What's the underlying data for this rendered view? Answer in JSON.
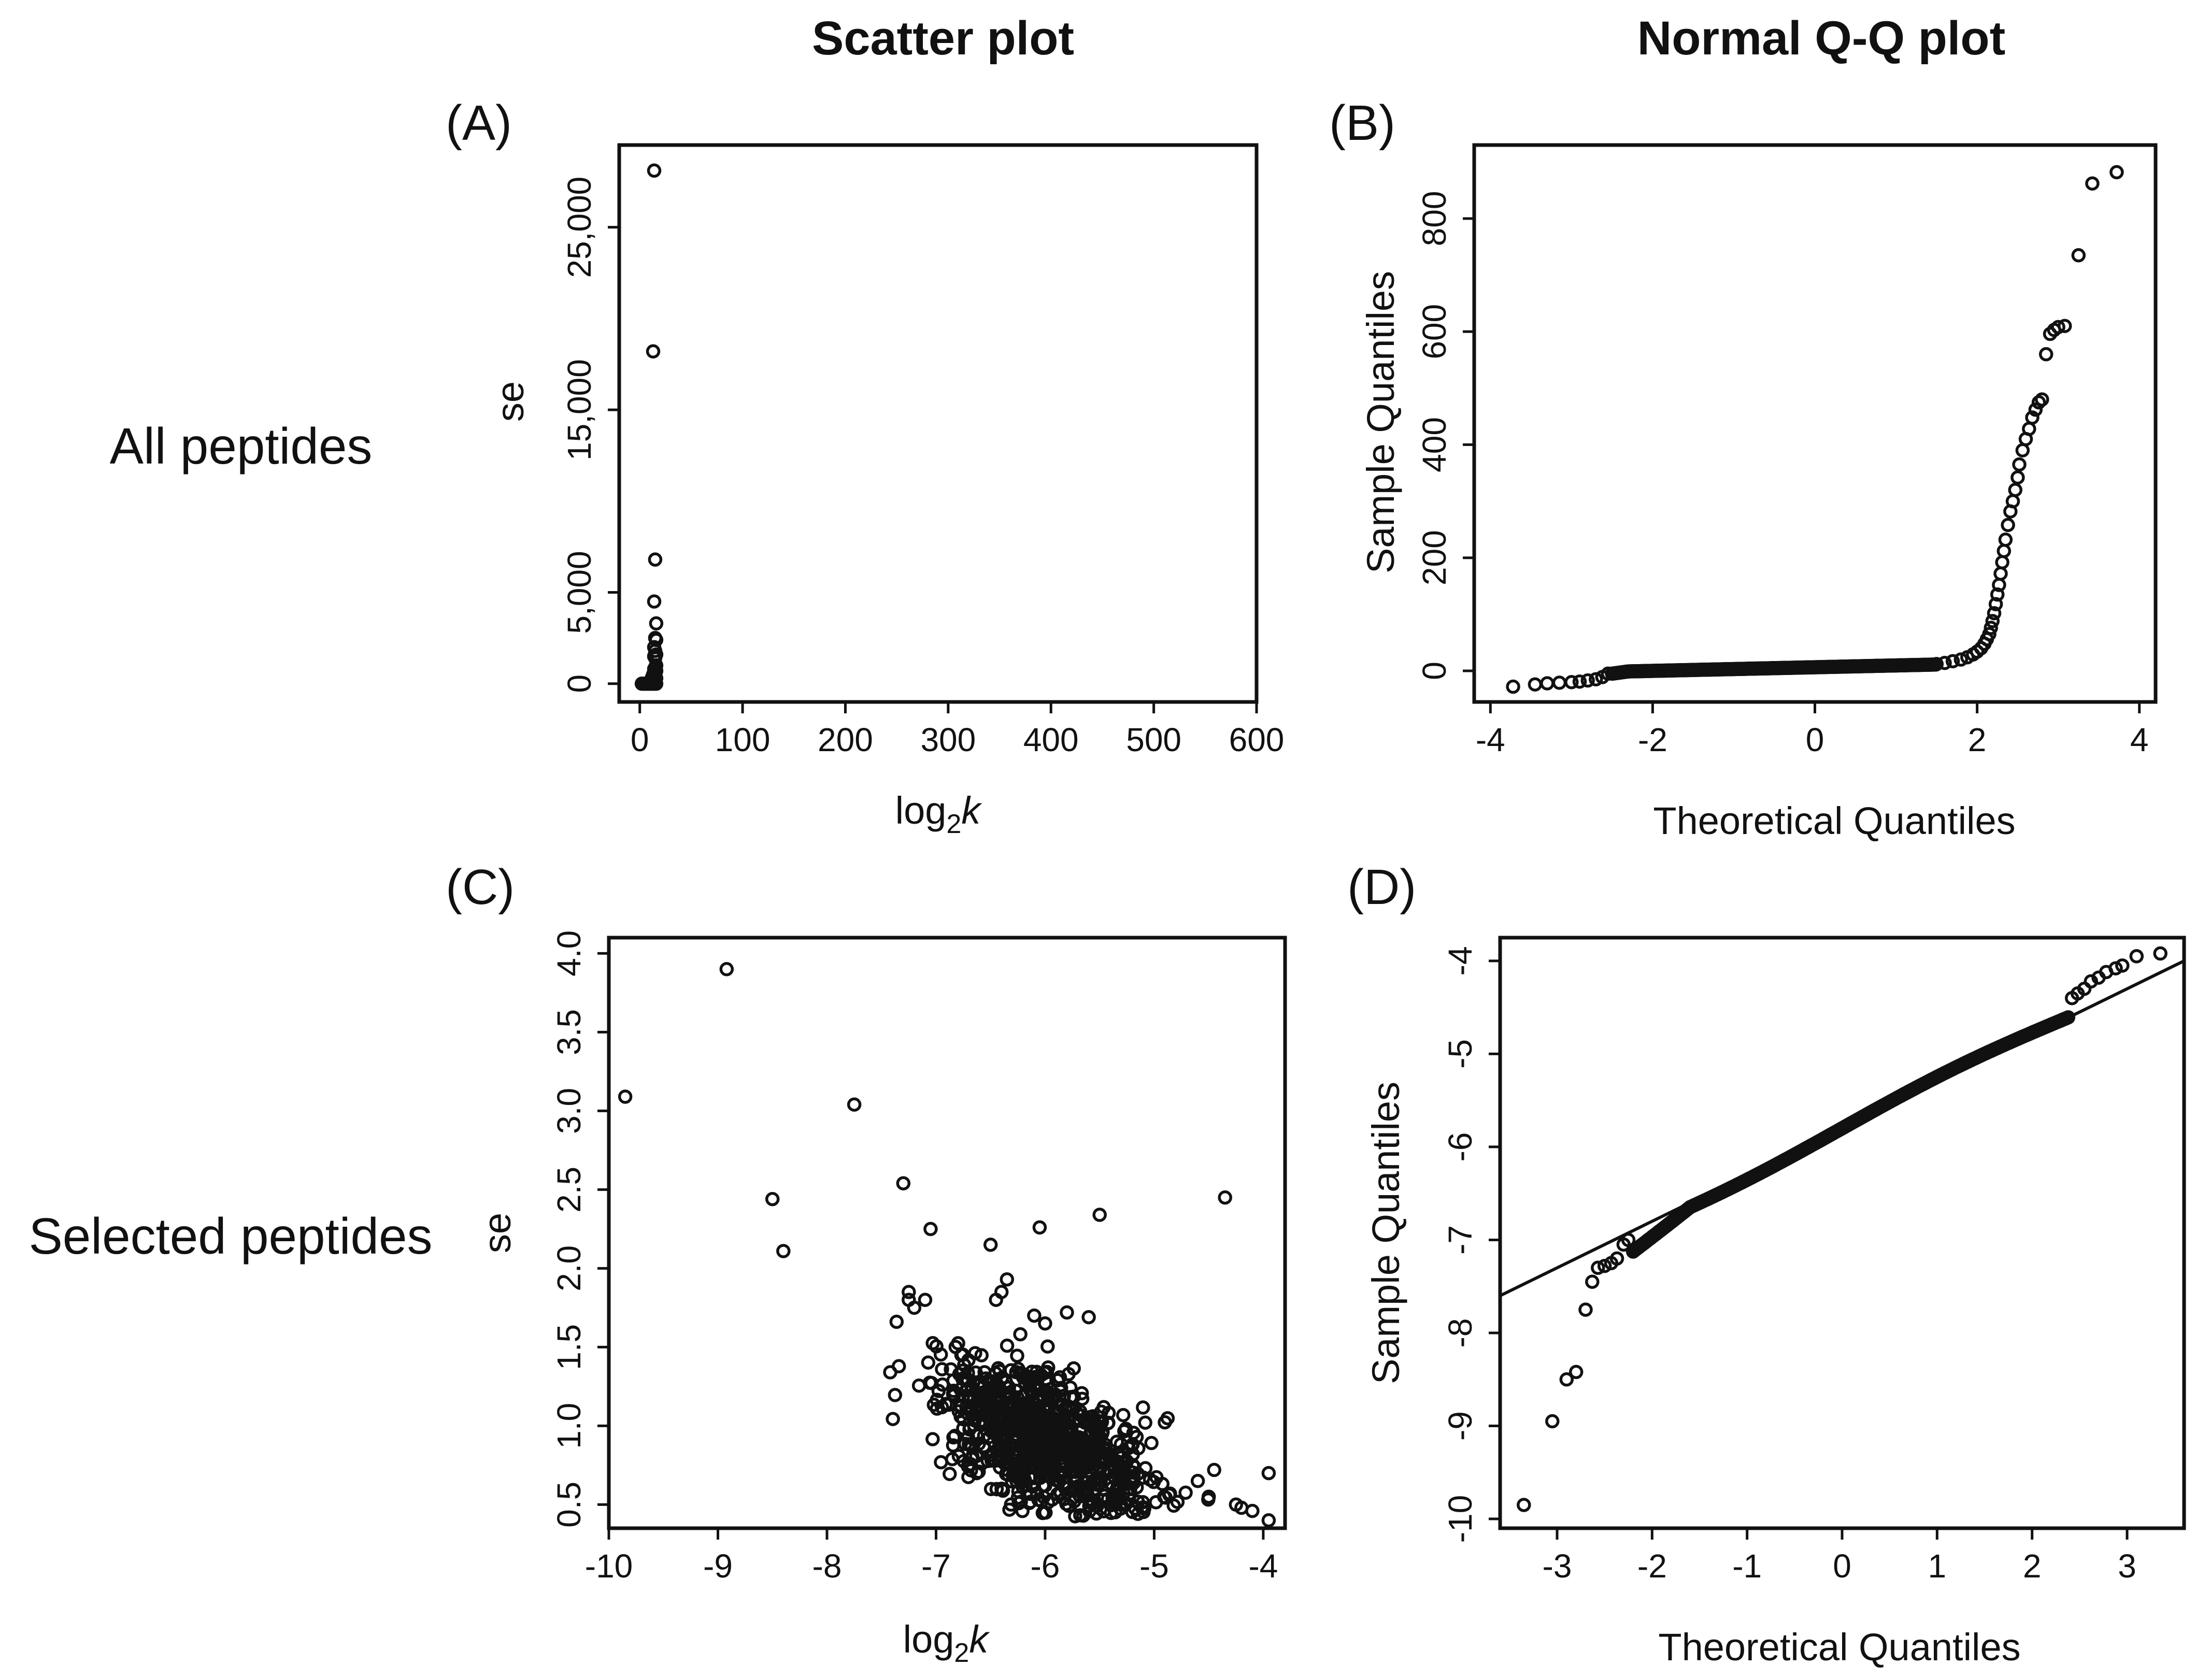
{
  "figure": {
    "col_titles": [
      "Scatter plot",
      "Normal Q-Q plot"
    ],
    "row_labels": [
      "All peptides",
      "Selected peptides"
    ]
  },
  "chart_data": [
    {
      "id": "A",
      "panel_label": "(A)",
      "type": "scatter",
      "title": "",
      "xlabel_base": "log",
      "xlabel_sub": "2",
      "xlabel_var": "k",
      "ylabel": "se",
      "xlim": [
        -20,
        600
      ],
      "ylim": [
        -1000,
        29500
      ],
      "xticks": [
        0,
        100,
        200,
        300,
        400,
        500,
        600
      ],
      "xtick_labels": [
        "0",
        "100",
        "200",
        "300",
        "400",
        "500",
        "600"
      ],
      "yticks": [
        0,
        5000,
        15000,
        25000
      ],
      "ytick_labels": [
        "0",
        "5,000",
        "15,000",
        "25,000"
      ],
      "points": [
        [
          14,
          28100
        ],
        [
          13,
          18200
        ],
        [
          15,
          6800
        ],
        [
          14,
          4500
        ],
        [
          16,
          3300
        ],
        [
          15,
          2500
        ],
        [
          16,
          2400
        ],
        [
          14,
          2000
        ],
        [
          15,
          1800
        ],
        [
          16,
          1600
        ],
        [
          14,
          1500
        ],
        [
          15,
          1400
        ],
        [
          16,
          1000
        ],
        [
          15,
          900
        ],
        [
          14,
          800
        ],
        [
          16,
          700
        ],
        [
          15,
          600
        ],
        [
          13,
          500
        ],
        [
          14,
          400
        ],
        [
          12,
          350
        ],
        [
          13,
          250
        ],
        [
          11,
          200
        ],
        [
          12,
          150
        ],
        [
          10,
          120
        ],
        [
          11,
          100
        ],
        [
          12,
          80
        ],
        [
          13,
          60
        ],
        [
          14,
          40
        ],
        [
          15,
          30
        ],
        [
          13,
          20
        ],
        [
          12,
          10
        ],
        [
          11,
          5
        ],
        [
          10,
          0
        ],
        [
          9,
          0
        ],
        [
          8,
          0
        ],
        [
          7,
          0
        ],
        [
          6,
          0
        ],
        [
          5,
          0
        ],
        [
          4,
          0
        ],
        [
          3,
          0
        ],
        [
          2,
          0
        ],
        [
          12,
          0
        ],
        [
          13,
          0
        ],
        [
          14,
          0
        ],
        [
          15,
          0
        ],
        [
          16,
          0
        ],
        [
          14,
          120
        ],
        [
          15,
          180
        ],
        [
          16,
          300
        ],
        [
          15,
          50
        ]
      ]
    },
    {
      "id": "B",
      "panel_label": "(B)",
      "type": "scatter",
      "subtype": "qq",
      "xlabel": "Theoretical Quantiles",
      "ylabel": "Sample Quantiles",
      "xlim": [
        -4.2,
        4.2
      ],
      "ylim": [
        -55,
        930
      ],
      "xticks": [
        -4,
        -2,
        0,
        2,
        4
      ],
      "xtick_labels": [
        "-4",
        "-2",
        "0",
        "2",
        "4"
      ],
      "yticks": [
        0,
        200,
        400,
        600,
        800
      ],
      "ytick_labels": [
        "0",
        "200",
        "400",
        "600",
        "800"
      ],
      "upper_tail": [
        [
          3.72,
          882
        ],
        [
          3.42,
          862
        ],
        [
          3.25,
          735
        ],
        [
          3.08,
          610
        ],
        [
          3.0,
          608
        ],
        [
          2.95,
          603
        ],
        [
          2.9,
          596
        ],
        [
          2.85,
          560
        ],
        [
          2.8,
          480
        ],
        [
          2.76,
          475
        ],
        [
          2.72,
          462
        ],
        [
          2.68,
          448
        ],
        [
          2.64,
          428
        ],
        [
          2.6,
          410
        ],
        [
          2.56,
          390
        ],
        [
          2.52,
          365
        ],
        [
          2.5,
          342
        ],
        [
          2.47,
          320
        ],
        [
          2.44,
          300
        ],
        [
          2.41,
          282
        ],
        [
          2.38,
          258
        ],
        [
          2.35,
          232
        ],
        [
          2.33,
          212
        ],
        [
          2.31,
          192
        ],
        [
          2.29,
          172
        ],
        [
          2.27,
          152
        ],
        [
          2.25,
          135
        ],
        [
          2.23,
          118
        ],
        [
          2.21,
          102
        ],
        [
          2.19,
          88
        ],
        [
          2.17,
          76
        ],
        [
          2.15,
          65
        ],
        [
          2.12,
          56
        ],
        [
          2.09,
          48
        ],
        [
          2.05,
          40
        ],
        [
          2.0,
          34
        ],
        [
          1.95,
          29
        ],
        [
          1.88,
          24
        ],
        [
          1.8,
          20
        ],
        [
          1.7,
          17
        ],
        [
          1.6,
          14
        ],
        [
          1.5,
          12
        ]
      ],
      "lower_tail": [
        [
          -3.72,
          -28
        ],
        [
          -3.45,
          -24
        ],
        [
          -3.3,
          -22
        ],
        [
          -3.15,
          -21
        ],
        [
          -3.0,
          -20
        ],
        [
          -2.9,
          -19
        ],
        [
          -2.8,
          -17
        ],
        [
          -2.7,
          -15
        ],
        [
          -2.62,
          -11
        ],
        [
          -2.55,
          -5
        ]
      ]
    },
    {
      "id": "C",
      "panel_label": "(C)",
      "type": "scatter",
      "xlabel_base": "log",
      "xlabel_sub": "2",
      "xlabel_var": "k",
      "ylabel": "se",
      "xlim": [
        -10,
        -3.8
      ],
      "ylim": [
        0.35,
        4.1
      ],
      "xticks": [
        -10,
        -9,
        -8,
        -7,
        -6,
        -5,
        -4
      ],
      "xtick_labels": [
        "-10",
        "-9",
        "-8",
        "-7",
        "-6",
        "-5",
        "-4"
      ],
      "yticks": [
        0.5,
        1.0,
        1.5,
        2.0,
        2.5,
        3.0,
        3.5,
        4.0
      ],
      "ytick_labels": [
        "0.5",
        "1.0",
        "1.5",
        "2.0",
        "2.5",
        "3.0",
        "3.5",
        "4.0"
      ],
      "outliers": [
        [
          -9.85,
          3.09
        ],
        [
          -8.92,
          3.9
        ],
        [
          -8.5,
          2.44
        ],
        [
          -8.4,
          2.11
        ],
        [
          -7.75,
          3.04
        ],
        [
          -7.3,
          2.54
        ],
        [
          -7.05,
          2.25
        ],
        [
          -6.5,
          2.15
        ],
        [
          -6.05,
          2.26
        ],
        [
          -5.5,
          2.34
        ],
        [
          -4.35,
          2.45
        ],
        [
          -7.42,
          1.34
        ],
        [
          -7.25,
          1.85
        ],
        [
          -7.25,
          1.8
        ],
        [
          -7.2,
          1.75
        ],
        [
          -7.1,
          1.8
        ],
        [
          -6.35,
          1.93
        ],
        [
          -6.4,
          1.85
        ],
        [
          -6.45,
          1.8
        ],
        [
          -4.45,
          0.72
        ],
        [
          -4.25,
          0.5
        ],
        [
          -4.2,
          0.48
        ],
        [
          -4.1,
          0.46
        ],
        [
          -3.95,
          0.7
        ],
        [
          -3.95,
          0.4
        ],
        [
          -4.5,
          0.55
        ],
        [
          -4.6,
          0.65
        ],
        [
          -5.6,
          1.69
        ],
        [
          -5.8,
          1.72
        ],
        [
          -6.1,
          1.7
        ],
        [
          -6.0,
          1.65
        ]
      ],
      "cluster": {
        "n": 850,
        "center_x": -6.0,
        "center_y": 0.9,
        "spread_x": 0.48,
        "spread_y": 0.2,
        "slope": -0.28,
        "seed": 7
      }
    },
    {
      "id": "D",
      "panel_label": "(D)",
      "type": "scatter",
      "subtype": "qq",
      "xlabel": "Theoretical Quantiles",
      "ylabel": "Sample Quantiles",
      "xlim": [
        -3.6,
        3.6
      ],
      "ylim": [
        -10.1,
        -3.75
      ],
      "xticks": [
        -3,
        -2,
        -1,
        0,
        1,
        2,
        3
      ],
      "xtick_labels": [
        "-3",
        "-2",
        "-1",
        "0",
        "1",
        "2",
        "3"
      ],
      "yticks": [
        -10,
        -9,
        -8,
        -7,
        -6,
        -5,
        -4
      ],
      "ytick_labels": [
        "-10",
        "-9",
        "-8",
        "-7",
        "-6",
        "-5",
        "-4"
      ],
      "reference_line": {
        "intercept": -5.8,
        "slope": 0.5
      },
      "lower_tail": [
        [
          -3.35,
          -9.85
        ],
        [
          -3.05,
          -8.95
        ],
        [
          -2.9,
          -8.5
        ],
        [
          -2.8,
          -8.42
        ],
        [
          -2.7,
          -7.75
        ],
        [
          -2.63,
          -7.45
        ],
        [
          -2.57,
          -7.3
        ],
        [
          -2.5,
          -7.28
        ],
        [
          -2.43,
          -7.25
        ],
        [
          -2.37,
          -7.2
        ],
        [
          -2.3,
          -7.05
        ],
        [
          -2.25,
          -7.0
        ]
      ],
      "upper_tail": [
        [
          3.35,
          -3.92
        ],
        [
          3.1,
          -3.95
        ],
        [
          2.95,
          -4.05
        ],
        [
          2.88,
          -4.08
        ],
        [
          2.78,
          -4.12
        ],
        [
          2.7,
          -4.18
        ],
        [
          2.62,
          -4.22
        ],
        [
          2.55,
          -4.3
        ],
        [
          2.48,
          -4.35
        ],
        [
          2.42,
          -4.4
        ]
      ],
      "body_x_range": [
        -2.2,
        2.4
      ]
    }
  ]
}
